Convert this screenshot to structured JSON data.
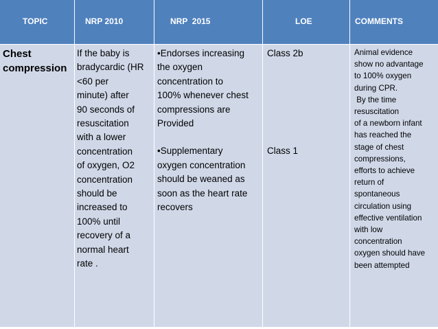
{
  "table": {
    "headers": [
      "TOPIC",
      "NRP 2010",
      "NRP  2015",
      "LOE",
      "COMMENTS"
    ],
    "row": {
      "topic": [
        "Chest",
        "compression"
      ],
      "nrp2010": [
        "If the baby is",
        "bradycardic (HR",
        "<60 per",
        "minute) after",
        "90 seconds of",
        "resuscitation",
        "with a lower",
        "concentration",
        "of oxygen, O2",
        "concentration",
        "should be",
        "increased to",
        "100% until",
        "recovery of a",
        "normal heart",
        "rate ."
      ],
      "nrp2015_a": [
        "•Endorses increasing",
        "the oxygen",
        "concentration to",
        "100% whenever chest",
        "compressions are",
        "Provided"
      ],
      "nrp2015_b": [
        "•Supplementary",
        "oxygen concentration",
        "should be weaned as",
        "soon as the heart rate",
        "recovers"
      ],
      "loe_a": "Class 2b",
      "loe_b": "Class 1",
      "comments": [
        "Animal evidence",
        "show no advantage",
        "to 100% oxygen",
        "during CPR.",
        " By the time",
        "resuscitation",
        "of a newborn infant",
        "has reached the",
        "stage of chest",
        "compressions,",
        "efforts to achieve",
        "return of",
        "spontaneous",
        "circulation using",
        "effective ventilation",
        "with low",
        "concentration",
        "oxygen should have",
        "been attempted"
      ]
    }
  },
  "colors": {
    "header": "#4f81bd",
    "body": "#d0d8e8",
    "header_text": "#ffffff"
  }
}
